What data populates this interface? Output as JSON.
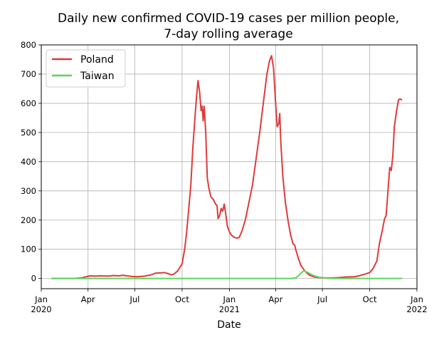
{
  "chart_data": {
    "type": "line",
    "title_line1": "Daily new confirmed COVID-19 cases per million people,",
    "title_line2": "7-day rolling average",
    "xlabel": "Date",
    "ylabel": "",
    "xlim": [
      "2020-01-01",
      "2022-01-01"
    ],
    "ylim": [
      -35,
      800
    ],
    "grid": true,
    "legend_position": "top-left",
    "x_ticks": [
      {
        "date": "2020-01-01",
        "label": "Jan",
        "sublabel": "2020"
      },
      {
        "date": "2020-04-01",
        "label": "Apr",
        "sublabel": ""
      },
      {
        "date": "2020-07-01",
        "label": "Jul",
        "sublabel": ""
      },
      {
        "date": "2020-10-01",
        "label": "Oct",
        "sublabel": ""
      },
      {
        "date": "2021-01-01",
        "label": "Jan",
        "sublabel": "2021"
      },
      {
        "date": "2021-04-01",
        "label": "Apr",
        "sublabel": ""
      },
      {
        "date": "2021-07-01",
        "label": "Jul",
        "sublabel": ""
      },
      {
        "date": "2021-10-01",
        "label": "Oct",
        "sublabel": ""
      },
      {
        "date": "2022-01-01",
        "label": "Jan",
        "sublabel": "2022"
      }
    ],
    "y_ticks": [
      0,
      100,
      200,
      300,
      400,
      500,
      600,
      700,
      800
    ],
    "series": [
      {
        "name": "Poland",
        "color": "#e03a3a",
        "points": [
          [
            "2020-01-22",
            0
          ],
          [
            "2020-03-04",
            0
          ],
          [
            "2020-03-20",
            2
          ],
          [
            "2020-03-28",
            6
          ],
          [
            "2020-04-05",
            9
          ],
          [
            "2020-04-15",
            8
          ],
          [
            "2020-04-25",
            9
          ],
          [
            "2020-05-10",
            8
          ],
          [
            "2020-05-20",
            10
          ],
          [
            "2020-06-01",
            9
          ],
          [
            "2020-06-08",
            11
          ],
          [
            "2020-06-15",
            9
          ],
          [
            "2020-06-25",
            7
          ],
          [
            "2020-07-05",
            6
          ],
          [
            "2020-07-20",
            8
          ],
          [
            "2020-08-01",
            12
          ],
          [
            "2020-08-10",
            18
          ],
          [
            "2020-08-20",
            19
          ],
          [
            "2020-08-28",
            20
          ],
          [
            "2020-09-05",
            16
          ],
          [
            "2020-09-10",
            12
          ],
          [
            "2020-09-15",
            15
          ],
          [
            "2020-09-22",
            25
          ],
          [
            "2020-10-01",
            50
          ],
          [
            "2020-10-06",
            100
          ],
          [
            "2020-10-10",
            160
          ],
          [
            "2020-10-14",
            240
          ],
          [
            "2020-10-18",
            320
          ],
          [
            "2020-10-22",
            450
          ],
          [
            "2020-10-26",
            550
          ],
          [
            "2020-10-29",
            620
          ],
          [
            "2020-11-01",
            678
          ],
          [
            "2020-11-04",
            640
          ],
          [
            "2020-11-07",
            575
          ],
          [
            "2020-11-09",
            590
          ],
          [
            "2020-11-11",
            540
          ],
          [
            "2020-11-13",
            590
          ],
          [
            "2020-11-16",
            500
          ],
          [
            "2020-11-19",
            345
          ],
          [
            "2020-11-22",
            310
          ],
          [
            "2020-11-26",
            280
          ],
          [
            "2020-12-01",
            270
          ],
          [
            "2020-12-05",
            255
          ],
          [
            "2020-12-08",
            250
          ],
          [
            "2020-12-10",
            205
          ],
          [
            "2020-12-13",
            215
          ],
          [
            "2020-12-16",
            240
          ],
          [
            "2020-12-19",
            230
          ],
          [
            "2020-12-22",
            255
          ],
          [
            "2020-12-25",
            220
          ],
          [
            "2020-12-28",
            180
          ],
          [
            "2021-01-01",
            160
          ],
          [
            "2021-01-05",
            148
          ],
          [
            "2021-01-10",
            142
          ],
          [
            "2021-01-15",
            138
          ],
          [
            "2021-01-20",
            140
          ],
          [
            "2021-01-25",
            160
          ],
          [
            "2021-02-01",
            200
          ],
          [
            "2021-02-08",
            260
          ],
          [
            "2021-02-15",
            320
          ],
          [
            "2021-02-22",
            410
          ],
          [
            "2021-03-01",
            500
          ],
          [
            "2021-03-08",
            600
          ],
          [
            "2021-03-15",
            700
          ],
          [
            "2021-03-20",
            745
          ],
          [
            "2021-03-24",
            763
          ],
          [
            "2021-03-28",
            720
          ],
          [
            "2021-04-01",
            600
          ],
          [
            "2021-04-04",
            520
          ],
          [
            "2021-04-07",
            530
          ],
          [
            "2021-04-09",
            565
          ],
          [
            "2021-04-11",
            470
          ],
          [
            "2021-04-15",
            350
          ],
          [
            "2021-04-20",
            260
          ],
          [
            "2021-04-25",
            200
          ],
          [
            "2021-04-30",
            150
          ],
          [
            "2021-05-05",
            118
          ],
          [
            "2021-05-08",
            115
          ],
          [
            "2021-05-10",
            100
          ],
          [
            "2021-05-15",
            70
          ],
          [
            "2021-05-20",
            45
          ],
          [
            "2021-05-28",
            25
          ],
          [
            "2021-06-05",
            12
          ],
          [
            "2021-06-15",
            5
          ],
          [
            "2021-06-25",
            3
          ],
          [
            "2021-07-05",
            2
          ],
          [
            "2021-07-20",
            2
          ],
          [
            "2021-08-01",
            3
          ],
          [
            "2021-08-15",
            5
          ],
          [
            "2021-09-01",
            6
          ],
          [
            "2021-09-10",
            9
          ],
          [
            "2021-09-20",
            14
          ],
          [
            "2021-10-01",
            20
          ],
          [
            "2021-10-08",
            35
          ],
          [
            "2021-10-15",
            60
          ],
          [
            "2021-10-20",
            120
          ],
          [
            "2021-10-25",
            160
          ],
          [
            "2021-10-30",
            205
          ],
          [
            "2021-11-02",
            215
          ],
          [
            "2021-11-06",
            310
          ],
          [
            "2021-11-09",
            380
          ],
          [
            "2021-11-12",
            370
          ],
          [
            "2021-11-15",
            420
          ],
          [
            "2021-11-18",
            520
          ],
          [
            "2021-11-22",
            570
          ],
          [
            "2021-11-26",
            612
          ],
          [
            "2021-11-29",
            615
          ],
          [
            "2021-12-02",
            612
          ]
        ]
      },
      {
        "name": "Taiwan",
        "color": "#5cd65c",
        "points": [
          [
            "2020-01-22",
            0
          ],
          [
            "2021-05-01",
            0
          ],
          [
            "2021-05-10",
            2
          ],
          [
            "2021-05-16",
            10
          ],
          [
            "2021-05-21",
            20
          ],
          [
            "2021-05-26",
            26
          ],
          [
            "2021-06-01",
            22
          ],
          [
            "2021-06-08",
            15
          ],
          [
            "2021-06-15",
            9
          ],
          [
            "2021-06-25",
            4
          ],
          [
            "2021-07-10",
            1
          ],
          [
            "2021-08-01",
            0
          ],
          [
            "2021-12-02",
            0
          ]
        ]
      }
    ]
  }
}
